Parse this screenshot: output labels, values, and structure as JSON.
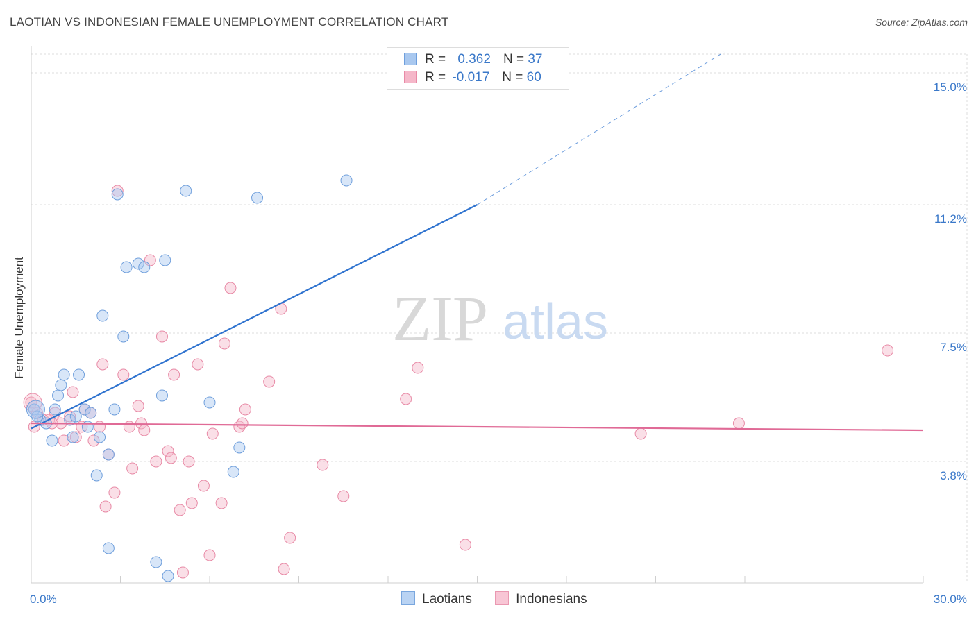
{
  "chart_data": {
    "type": "scatter",
    "title": "LAOTIAN VS INDONESIAN FEMALE UNEMPLOYMENT CORRELATION CHART",
    "source": "Source: ZipAtlas.com",
    "ylabel": "Female Unemployment",
    "xlabel": "",
    "xlim": [
      0,
      30
    ],
    "ylim": [
      0.3,
      15.7
    ],
    "x_tick_labels": [
      "0.0%",
      "30.0%"
    ],
    "y_ticks": [
      {
        "value": 15.0,
        "label": "15.0%"
      },
      {
        "value": 11.2,
        "label": "11.2%"
      },
      {
        "value": 7.5,
        "label": "7.5%"
      },
      {
        "value": 3.8,
        "label": "3.8%"
      }
    ],
    "watermark": {
      "zip": "ZIP",
      "atlas": "atlas"
    },
    "colors": {
      "laotian": "#a9c8ef",
      "laotian_stroke": "#6f9fdc",
      "laotian_line": "#2f73cf",
      "indonesian": "#f5b7c9",
      "indonesian_stroke": "#e88aa6",
      "indonesian_line": "#e06a96",
      "accent": "#3a78c9"
    },
    "stats": [
      {
        "name": "Laotians",
        "r_label": "R =",
        "r": "0.362",
        "n_label": "N =",
        "n": "37"
      },
      {
        "name": "Indonesians",
        "r_label": "R =",
        "r": "-0.017",
        "n_label": "N =",
        "n": "60"
      }
    ],
    "series": [
      {
        "name": "Laotians",
        "trend": {
          "x0": 0.0,
          "y0": 4.75,
          "x1": 15.0,
          "y1": 11.2,
          "dash_to_x": 23.3,
          "dash_to_y": 15.6
        },
        "points": [
          [
            0.1,
            5.3
          ],
          [
            0.3,
            5.0
          ],
          [
            0.5,
            4.9
          ],
          [
            0.8,
            5.3
          ],
          [
            0.7,
            4.4
          ],
          [
            0.9,
            5.7
          ],
          [
            1.0,
            6.0
          ],
          [
            1.1,
            6.3
          ],
          [
            1.3,
            5.0
          ],
          [
            1.4,
            4.5
          ],
          [
            1.5,
            5.1
          ],
          [
            1.6,
            6.3
          ],
          [
            1.8,
            5.3
          ],
          [
            1.9,
            4.8
          ],
          [
            2.0,
            5.2
          ],
          [
            2.2,
            3.4
          ],
          [
            2.3,
            4.5
          ],
          [
            2.4,
            8.0
          ],
          [
            2.6,
            4.0
          ],
          [
            2.8,
            5.3
          ],
          [
            2.9,
            11.5
          ],
          [
            3.1,
            7.4
          ],
          [
            3.2,
            9.4
          ],
          [
            3.6,
            9.5
          ],
          [
            3.8,
            9.4
          ],
          [
            4.2,
            0.9
          ],
          [
            4.4,
            5.7
          ],
          [
            4.5,
            9.6
          ],
          [
            4.6,
            0.5
          ],
          [
            5.2,
            11.6
          ],
          [
            6.0,
            5.5
          ],
          [
            6.8,
            3.5
          ],
          [
            7.0,
            4.2
          ],
          [
            7.6,
            11.4
          ],
          [
            10.6,
            11.9
          ],
          [
            0.2,
            5.1
          ],
          [
            2.6,
            1.3
          ]
        ]
      },
      {
        "name": "Indonesians",
        "trend": {
          "x0": 0.0,
          "y0": 4.9,
          "x1": 30.0,
          "y1": 4.7
        },
        "points": [
          [
            0.0,
            5.5
          ],
          [
            0.2,
            5.2
          ],
          [
            0.4,
            5.0
          ],
          [
            0.6,
            5.0
          ],
          [
            0.7,
            4.9
          ],
          [
            0.8,
            5.2
          ],
          [
            1.0,
            4.9
          ],
          [
            1.1,
            4.4
          ],
          [
            1.3,
            5.1
          ],
          [
            1.4,
            5.8
          ],
          [
            1.5,
            4.5
          ],
          [
            1.7,
            4.8
          ],
          [
            1.8,
            5.3
          ],
          [
            2.0,
            5.2
          ],
          [
            2.1,
            4.4
          ],
          [
            2.3,
            4.8
          ],
          [
            2.4,
            6.6
          ],
          [
            2.5,
            2.5
          ],
          [
            2.6,
            4.0
          ],
          [
            2.8,
            2.9
          ],
          [
            2.9,
            11.6
          ],
          [
            3.1,
            6.3
          ],
          [
            3.3,
            4.8
          ],
          [
            3.4,
            3.6
          ],
          [
            3.6,
            5.4
          ],
          [
            3.7,
            4.9
          ],
          [
            3.8,
            4.7
          ],
          [
            4.0,
            9.6
          ],
          [
            4.2,
            3.8
          ],
          [
            4.4,
            7.4
          ],
          [
            4.6,
            4.1
          ],
          [
            4.7,
            3.9
          ],
          [
            4.8,
            6.3
          ],
          [
            5.0,
            2.4
          ],
          [
            5.1,
            0.6
          ],
          [
            5.3,
            3.8
          ],
          [
            5.4,
            2.6
          ],
          [
            5.6,
            6.6
          ],
          [
            5.8,
            3.1
          ],
          [
            6.0,
            1.1
          ],
          [
            6.1,
            4.6
          ],
          [
            6.4,
            2.6
          ],
          [
            6.5,
            7.2
          ],
          [
            6.7,
            8.8
          ],
          [
            7.0,
            4.8
          ],
          [
            7.1,
            4.9
          ],
          [
            7.2,
            5.3
          ],
          [
            8.0,
            6.1
          ],
          [
            8.4,
            8.2
          ],
          [
            8.5,
            0.7
          ],
          [
            8.7,
            1.6
          ],
          [
            9.8,
            3.7
          ],
          [
            10.5,
            2.8
          ],
          [
            13.0,
            6.5
          ],
          [
            14.6,
            1.4
          ],
          [
            12.6,
            5.6
          ],
          [
            20.5,
            4.6
          ],
          [
            23.8,
            4.9
          ],
          [
            28.8,
            7.0
          ],
          [
            0.1,
            4.8
          ]
        ]
      }
    ]
  }
}
